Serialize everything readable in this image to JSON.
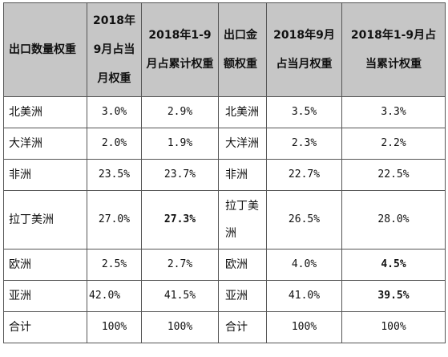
{
  "headers": [
    "出口数量权重",
    "2018年9月占当月权重",
    "2018年1-9月占累计权重",
    "出口金额权重",
    "2018年9月占当月权重",
    "2018年1-9月占当累计权重"
  ],
  "rows": [
    {
      "qty_region": "北美洲",
      "qty_month": "3.0%",
      "qty_cum": "2.9%",
      "val_region": "北美洲",
      "val_month": "3.5%",
      "val_cum": "3.3%"
    },
    {
      "qty_region": "大洋洲",
      "qty_month": "2.0%",
      "qty_cum": "1.9%",
      "val_region": "大洋洲",
      "val_month": "2.3%",
      "val_cum": "2.2%"
    },
    {
      "qty_region": "非洲",
      "qty_month": "23.5%",
      "qty_cum": "23.7%",
      "val_region": "非洲",
      "val_month": "22.7%",
      "val_cum": "22.5%"
    },
    {
      "qty_region": "拉丁美洲",
      "qty_month": "27.0%",
      "qty_cum": "27.3%",
      "val_region": "拉丁美洲",
      "val_month": "26.5%",
      "val_cum": "28.0%"
    },
    {
      "qty_region": "欧洲",
      "qty_month": "2.5%",
      "qty_cum": "2.7%",
      "val_region": "欧洲",
      "val_month": "4.0%",
      "val_cum": "4.5%"
    },
    {
      "qty_region": "亚洲",
      "qty_month": "42.0%",
      "qty_cum": "41.5%",
      "val_region": "亚洲",
      "val_month": "41.0%",
      "val_cum": "39.5%"
    },
    {
      "qty_region": "合计",
      "qty_month": "100%",
      "qty_cum": "100%",
      "val_region": "合计",
      "val_month": "100%",
      "val_cum": "100%"
    }
  ]
}
